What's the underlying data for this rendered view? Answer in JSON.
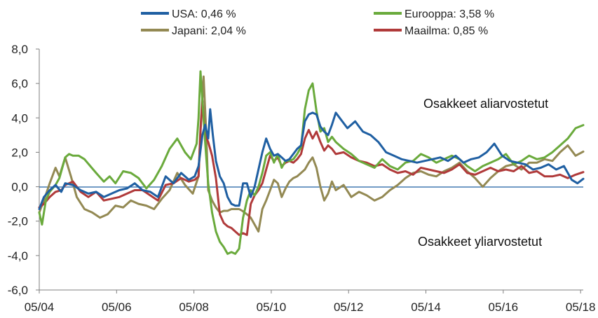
{
  "chart_data": {
    "type": "line",
    "title": "",
    "xlabel": "",
    "ylabel": "",
    "ylim": [
      -6,
      8
    ],
    "yticks": [
      "8,0",
      "6,0",
      "4,0",
      "2,0",
      "0,0",
      "-2,0",
      "-4,0",
      "-6,0"
    ],
    "xticks": [
      "05/04",
      "05/06",
      "05/08",
      "05/10",
      "05/12",
      "05/14",
      "05/16",
      "05/18"
    ],
    "xrange": [
      2004.33,
      2018.4
    ],
    "annotations": [
      "Osakkeet aliarvostetut",
      "Osakkeet yliarvostetut"
    ],
    "series": [
      {
        "name": "Japani",
        "label": "Japani: 2,04 %",
        "color": "#938953",
        "x": [
          2004.33,
          2004.45,
          2004.6,
          2004.75,
          2004.85,
          2005.0,
          2005.15,
          2005.3,
          2005.5,
          2005.7,
          2005.9,
          2006.1,
          2006.3,
          2006.5,
          2006.7,
          2006.9,
          2007.1,
          2007.3,
          2007.5,
          2007.7,
          2007.9,
          2008.1,
          2008.3,
          2008.45,
          2008.5,
          2008.58,
          2008.65,
          2008.7,
          2008.8,
          2008.9,
          2009.0,
          2009.1,
          2009.2,
          2009.3,
          2009.4,
          2009.5,
          2009.58,
          2009.7,
          2009.8,
          2009.9,
          2010.0,
          2010.1,
          2010.2,
          2010.3,
          2010.4,
          2010.5,
          2010.6,
          2010.7,
          2010.8,
          2010.9,
          2011.0,
          2011.1,
          2011.2,
          2011.3,
          2011.4,
          2011.5,
          2011.6,
          2011.7,
          2011.8,
          2011.9,
          2012.0,
          2012.2,
          2012.4,
          2012.6,
          2012.8,
          2013.0,
          2013.2,
          2013.4,
          2013.6,
          2013.8,
          2014.0,
          2014.2,
          2014.4,
          2014.6,
          2014.8,
          2015.0,
          2015.2,
          2015.4,
          2015.6,
          2015.8,
          2016.0,
          2016.2,
          2016.4,
          2016.6,
          2016.8,
          2017.0,
          2017.2,
          2017.4,
          2017.6,
          2017.8,
          2018.0,
          2018.2,
          2018.4
        ],
        "y": [
          -1.5,
          -0.8,
          0.2,
          1.1,
          0.6,
          1.7,
          0.6,
          -0.6,
          -1.3,
          -1.5,
          -1.8,
          -1.6,
          -1.1,
          -1.2,
          -0.8,
          -1.0,
          -1.1,
          -1.3,
          -0.7,
          -0.2,
          0.8,
          0.1,
          -0.4,
          0.6,
          3.4,
          6.4,
          3.0,
          -0.2,
          -0.8,
          -1.2,
          -1.5,
          -1.4,
          -1.4,
          -1.3,
          -1.3,
          -1.3,
          -1.4,
          -1.6,
          -1.8,
          -2.2,
          -2.6,
          -1.3,
          -0.8,
          -0.2,
          0.4,
          0.2,
          -0.6,
          -0.1,
          0.3,
          0.5,
          0.6,
          0.8,
          1.0,
          1.4,
          1.7,
          1.1,
          0.0,
          -0.8,
          -0.4,
          0.3,
          -0.2,
          0.1,
          -0.6,
          -0.3,
          -0.5,
          -0.8,
          -0.6,
          -0.2,
          0.1,
          0.5,
          0.8,
          0.9,
          0.7,
          0.6,
          0.9,
          1.1,
          1.4,
          0.9,
          0.5,
          0.0,
          0.5,
          0.9,
          1.2,
          1.3,
          1.0,
          1.4,
          1.4,
          1.6,
          1.5,
          2.0,
          2.4,
          1.8,
          2.04
        ]
      },
      {
        "name": "Maailma",
        "label": "Maailma: 0,85 %",
        "color": "#b03a3a",
        "x": [
          2004.33,
          2004.45,
          2004.6,
          2004.75,
          2004.9,
          2005.0,
          2005.2,
          2005.4,
          2005.6,
          2005.8,
          2006.0,
          2006.2,
          2006.4,
          2006.6,
          2006.8,
          2007.0,
          2007.2,
          2007.4,
          2007.6,
          2007.8,
          2008.0,
          2008.2,
          2008.35,
          2008.45,
          2008.5,
          2008.55,
          2008.62,
          2008.7,
          2008.8,
          2008.9,
          2009.0,
          2009.1,
          2009.2,
          2009.3,
          2009.4,
          2009.5,
          2009.6,
          2009.7,
          2009.8,
          2009.9,
          2010.0,
          2010.1,
          2010.2,
          2010.3,
          2010.4,
          2010.5,
          2010.6,
          2010.7,
          2010.8,
          2010.9,
          2011.0,
          2011.1,
          2011.2,
          2011.3,
          2011.4,
          2011.5,
          2011.6,
          2011.7,
          2011.8,
          2011.9,
          2012.0,
          2012.2,
          2012.4,
          2012.6,
          2012.8,
          2013.0,
          2013.2,
          2013.4,
          2013.6,
          2013.8,
          2014.0,
          2014.2,
          2014.4,
          2014.6,
          2014.8,
          2015.0,
          2015.2,
          2015.4,
          2015.6,
          2015.8,
          2016.0,
          2016.2,
          2016.4,
          2016.6,
          2016.8,
          2017.0,
          2017.2,
          2017.4,
          2017.6,
          2017.8,
          2018.0,
          2018.2,
          2018.4
        ],
        "y": [
          -1.2,
          -1.0,
          -0.6,
          -0.3,
          -0.2,
          0.1,
          0.3,
          -0.3,
          -0.6,
          -0.3,
          -0.8,
          -0.7,
          -0.6,
          -0.4,
          -0.2,
          -0.2,
          -0.5,
          -0.8,
          0.1,
          0.2,
          0.5,
          0.3,
          0.4,
          0.6,
          3.2,
          5.0,
          3.0,
          2.6,
          1.8,
          0.5,
          -1.6,
          -2.1,
          -2.3,
          -2.4,
          -2.6,
          -2.8,
          -2.7,
          -2.8,
          -1.0,
          -0.5,
          -0.2,
          0.2,
          1.0,
          1.8,
          1.5,
          1.7,
          1.2,
          1.4,
          1.5,
          1.4,
          1.6,
          1.9,
          2.8,
          3.3,
          2.8,
          3.2,
          2.6,
          2.1,
          2.4,
          2.2,
          1.9,
          2.0,
          1.7,
          1.5,
          1.4,
          1.2,
          1.3,
          1.0,
          0.8,
          0.9,
          0.7,
          1.1,
          1.0,
          0.9,
          0.8,
          1.0,
          1.3,
          0.8,
          0.7,
          0.9,
          1.1,
          0.9,
          1.0,
          0.9,
          1.2,
          0.8,
          0.9,
          0.6,
          0.6,
          0.7,
          0.5,
          0.7,
          0.85
        ]
      },
      {
        "name": "Eurooppa",
        "label": "Eurooppa: 3,58 %",
        "color": "#6aaa3c",
        "x": [
          2004.33,
          2004.4,
          2004.5,
          2004.6,
          2004.75,
          2004.85,
          2005.0,
          2005.1,
          2005.2,
          2005.35,
          2005.5,
          2005.65,
          2005.8,
          2006.0,
          2006.15,
          2006.3,
          2006.5,
          2006.7,
          2006.9,
          2007.1,
          2007.3,
          2007.5,
          2007.7,
          2007.9,
          2008.1,
          2008.25,
          2008.4,
          2008.45,
          2008.5,
          2008.55,
          2008.62,
          2008.7,
          2008.8,
          2008.9,
          2009.0,
          2009.1,
          2009.2,
          2009.3,
          2009.4,
          2009.5,
          2009.6,
          2009.7,
          2009.8,
          2009.9,
          2010.0,
          2010.1,
          2010.2,
          2010.3,
          2010.4,
          2010.5,
          2010.6,
          2010.7,
          2010.8,
          2010.9,
          2011.0,
          2011.1,
          2011.2,
          2011.3,
          2011.4,
          2011.5,
          2011.6,
          2011.7,
          2011.8,
          2011.9,
          2012.0,
          2012.2,
          2012.4,
          2012.6,
          2012.8,
          2013.0,
          2013.2,
          2013.4,
          2013.6,
          2013.8,
          2014.0,
          2014.2,
          2014.4,
          2014.6,
          2014.8,
          2015.0,
          2015.2,
          2015.4,
          2015.6,
          2015.8,
          2016.0,
          2016.2,
          2016.4,
          2016.6,
          2016.8,
          2017.0,
          2017.2,
          2017.4,
          2017.6,
          2017.8,
          2018.0,
          2018.2,
          2018.4
        ],
        "y": [
          -1.5,
          -2.2,
          -0.8,
          -0.3,
          0.1,
          0.5,
          1.7,
          1.9,
          1.8,
          1.8,
          1.6,
          1.2,
          0.8,
          0.3,
          0.6,
          0.2,
          0.9,
          0.8,
          0.5,
          -0.1,
          0.4,
          1.2,
          2.2,
          2.8,
          2.0,
          1.6,
          2.5,
          4.0,
          6.7,
          5.0,
          2.6,
          0.2,
          -1.5,
          -2.6,
          -3.2,
          -3.5,
          -3.9,
          -3.8,
          -3.9,
          -3.6,
          -1.8,
          -0.8,
          -0.2,
          -0.5,
          0.0,
          0.8,
          1.8,
          2.0,
          1.4,
          1.9,
          1.1,
          1.5,
          1.5,
          1.6,
          1.9,
          2.3,
          4.5,
          5.6,
          6.0,
          4.4,
          3.2,
          3.4,
          2.6,
          2.9,
          2.6,
          2.2,
          1.9,
          1.5,
          1.3,
          1.1,
          1.6,
          1.2,
          1.0,
          1.4,
          1.5,
          1.9,
          1.7,
          1.4,
          1.6,
          1.8,
          1.6,
          1.2,
          0.9,
          1.2,
          1.4,
          1.6,
          1.9,
          1.3,
          1.5,
          1.8,
          1.6,
          1.7,
          2.0,
          2.4,
          2.8,
          3.4,
          3.58
        ]
      },
      {
        "name": "USA",
        "label": "USA: 0,46 %",
        "color": "#1f5fa2",
        "x": [
          2004.33,
          2004.45,
          2004.6,
          2004.75,
          2004.9,
          2005.0,
          2005.2,
          2005.4,
          2005.6,
          2005.8,
          2006.0,
          2006.2,
          2006.4,
          2006.6,
          2006.8,
          2007.0,
          2007.2,
          2007.4,
          2007.6,
          2007.8,
          2008.0,
          2008.2,
          2008.35,
          2008.45,
          2008.55,
          2008.62,
          2008.7,
          2008.75,
          2008.82,
          2008.9,
          2009.0,
          2009.1,
          2009.2,
          2009.3,
          2009.4,
          2009.5,
          2009.6,
          2009.7,
          2009.8,
          2009.9,
          2010.0,
          2010.1,
          2010.2,
          2010.3,
          2010.4,
          2010.5,
          2010.6,
          2010.7,
          2010.8,
          2010.9,
          2011.0,
          2011.1,
          2011.2,
          2011.3,
          2011.4,
          2011.5,
          2011.6,
          2011.7,
          2011.8,
          2011.9,
          2012.0,
          2012.1,
          2012.3,
          2012.5,
          2012.7,
          2012.9,
          2013.1,
          2013.3,
          2013.5,
          2013.7,
          2013.9,
          2014.1,
          2014.3,
          2014.5,
          2014.7,
          2014.9,
          2015.1,
          2015.3,
          2015.5,
          2015.7,
          2015.9,
          2016.1,
          2016.3,
          2016.5,
          2016.7,
          2016.9,
          2017.1,
          2017.3,
          2017.5,
          2017.7,
          2017.9,
          2018.1,
          2018.25,
          2018.4
        ],
        "y": [
          -1.3,
          -0.6,
          -0.2,
          0.1,
          -0.3,
          0.2,
          0.1,
          -0.2,
          -0.4,
          -0.3,
          -0.6,
          -0.4,
          -0.2,
          -0.1,
          0.2,
          -0.2,
          -0.3,
          -0.6,
          0.6,
          0.2,
          0.8,
          0.4,
          0.6,
          1.2,
          3.0,
          3.6,
          2.8,
          4.5,
          3.0,
          1.5,
          0.6,
          0.2,
          -0.6,
          -1.0,
          -1.1,
          -1.1,
          0.2,
          0.2,
          -0.6,
          0.0,
          1.0,
          2.0,
          2.8,
          2.2,
          1.8,
          1.9,
          1.7,
          1.5,
          1.6,
          1.9,
          2.2,
          2.4,
          3.8,
          4.2,
          4.3,
          4.2,
          3.5,
          3.2,
          3.0,
          3.6,
          4.3,
          4.0,
          3.4,
          3.8,
          3.2,
          3.0,
          2.6,
          2.0,
          1.8,
          1.6,
          1.5,
          1.4,
          1.5,
          1.6,
          1.7,
          1.5,
          1.8,
          1.4,
          1.6,
          1.7,
          2.0,
          2.5,
          1.8,
          1.5,
          1.4,
          1.3,
          1.0,
          1.1,
          1.3,
          1.0,
          1.2,
          0.4,
          0.2,
          0.46
        ]
      }
    ]
  }
}
